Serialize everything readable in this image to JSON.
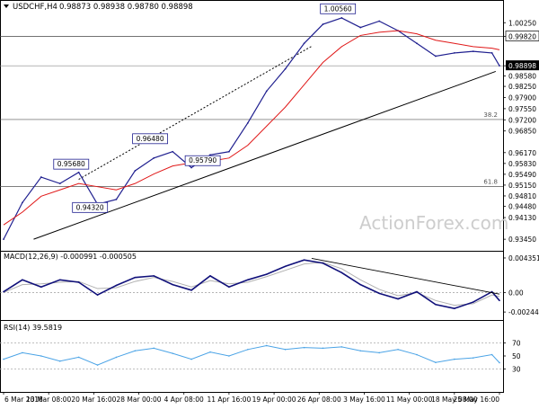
{
  "header": {
    "symbol": "USDCHF,H4",
    "ohlc": "0.98873 0.98938 0.98780 0.98898"
  },
  "watermark": "ActionForex.com",
  "colors": {
    "price": "#1f1f8f",
    "ma": "#e01818",
    "macd": "#10107a",
    "signal": "#b0b0b0",
    "rsi": "#4aa3e6",
    "trend": "#000000",
    "watermark": "#cdcdcd",
    "current_label_bg": "#000000",
    "annotation_border": "#1f1f8f"
  },
  "chart_data": [
    {
      "type": "line",
      "panel": "price",
      "ylim": [
        0.932,
        1.0085
      ],
      "y_ticks": [
        "1.00250",
        "0.99820",
        "0.98898",
        "0.98580",
        "0.98250",
        "0.97900",
        "0.97550",
        "0.97200",
        "0.96850",
        "0.96170",
        "0.95830",
        "0.95490",
        "0.95150",
        "0.94810",
        "0.94480",
        "0.94130",
        "0.93450"
      ],
      "y_tick_values": [
        1.0025,
        0.9982,
        0.98898,
        0.9858,
        0.9825,
        0.979,
        0.9755,
        0.972,
        0.9685,
        0.9617,
        0.9583,
        0.9549,
        0.9515,
        0.9481,
        0.9448,
        0.9413,
        0.9345
      ],
      "current_price": 0.98898,
      "resistance_level": 0.9982,
      "fib_levels": [
        {
          "label": "38.2",
          "value": 0.9721
        },
        {
          "label": "61.8",
          "value": 0.9511
        }
      ],
      "annotations": [
        {
          "text": "1.00560",
          "x": 89,
          "y": 1.0056
        },
        {
          "text": "0.95680",
          "x": 18,
          "y": 0.9568
        },
        {
          "text": "0.96480",
          "x": 39,
          "y": 0.9648
        },
        {
          "text": "0.94320",
          "x": 23,
          "y": 0.9432
        },
        {
          "text": "0.95790",
          "x": 53,
          "y": 0.9579
        }
      ],
      "trendlines": [
        {
          "x": [
            8,
            131
          ],
          "y": [
            0.9345,
            0.9872
          ]
        },
        {
          "x": [
            20,
            82
          ],
          "y": [
            0.9533,
            0.9951
          ]
        }
      ],
      "x": [
        0,
        5,
        10,
        15,
        20,
        25,
        30,
        35,
        40,
        45,
        50,
        55,
        60,
        65,
        70,
        75,
        80,
        85,
        90,
        95,
        100,
        105,
        110,
        115,
        120,
        125,
        130,
        132
      ],
      "close": [
        0.9345,
        0.946,
        0.954,
        0.952,
        0.9555,
        0.9455,
        0.947,
        0.956,
        0.96,
        0.962,
        0.957,
        0.961,
        0.962,
        0.971,
        0.981,
        0.988,
        0.996,
        1.002,
        1.004,
        1.001,
        1.003,
        1.0,
        0.996,
        0.992,
        0.993,
        0.9935,
        0.993,
        0.98898
      ],
      "ma": [
        0.939,
        0.943,
        0.948,
        0.95,
        0.952,
        0.951,
        0.95,
        0.952,
        0.955,
        0.9575,
        0.9585,
        0.959,
        0.96,
        0.964,
        0.97,
        0.976,
        0.983,
        0.99,
        0.995,
        0.9985,
        0.9995,
        1.0,
        0.999,
        0.997,
        0.996,
        0.995,
        0.9945,
        0.994
      ]
    },
    {
      "type": "line",
      "panel": "macd",
      "header": "MACD(12,26,9) -0.000991 -0.000505",
      "ylim": [
        -0.003,
        0.0048
      ],
      "y_ticks": [
        "0.004351",
        "0.00",
        "-0.002448"
      ],
      "y_tick_values": [
        0.004351,
        0.0,
        -0.002448
      ],
      "trendline": {
        "x": [
          82,
          132
        ],
        "y": [
          0.0043,
          -0.0002
        ]
      },
      "x": [
        0,
        5,
        10,
        15,
        20,
        25,
        30,
        35,
        40,
        45,
        50,
        55,
        60,
        65,
        70,
        75,
        80,
        85,
        90,
        95,
        100,
        105,
        110,
        115,
        120,
        125,
        130,
        132
      ],
      "macd": [
        0.0001,
        0.0016,
        0.0007,
        0.0016,
        0.0013,
        -0.0003,
        0.0009,
        0.0019,
        0.0021,
        0.001,
        0.0003,
        0.0021,
        0.0007,
        0.0016,
        0.0023,
        0.0033,
        0.0041,
        0.0037,
        0.0025,
        0.001,
        -0.0001,
        -0.0008,
        0.0001,
        -0.0015,
        -0.002,
        -0.0012,
        0.0001,
        -0.001
      ],
      "signal": [
        0.0,
        0.001,
        0.0011,
        0.0013,
        0.0014,
        0.0005,
        0.0006,
        0.0014,
        0.0019,
        0.0014,
        0.0007,
        0.0015,
        0.0011,
        0.0013,
        0.002,
        0.0028,
        0.0036,
        0.0038,
        0.003,
        0.0016,
        0.0004,
        -0.0004,
        0.0,
        -0.001,
        -0.0016,
        -0.0014,
        -0.0003,
        -0.0005
      ]
    },
    {
      "type": "line",
      "panel": "rsi",
      "header": "RSI(14) 39.5819",
      "ylim": [
        0,
        100
      ],
      "y_ticks": [
        "70",
        "50",
        "30"
      ],
      "y_tick_values": [
        70,
        50,
        30
      ],
      "x": [
        0,
        5,
        10,
        15,
        20,
        25,
        30,
        35,
        40,
        45,
        50,
        55,
        60,
        65,
        70,
        75,
        80,
        85,
        90,
        95,
        100,
        105,
        110,
        115,
        120,
        125,
        130,
        132
      ],
      "rsi": [
        45,
        55,
        50,
        42,
        48,
        36,
        48,
        58,
        62,
        54,
        45,
        56,
        50,
        60,
        66,
        60,
        63,
        62,
        64,
        58,
        55,
        60,
        52,
        40,
        45,
        47,
        52,
        39.58
      ]
    }
  ],
  "x_axis": {
    "labels": [
      "6 Mar 2018",
      "13 Mar 08:00",
      "20 Mar 16:00",
      "28 Mar 00:00",
      "4 Apr 08:00",
      "11 Apr 16:00",
      "19 Apr 00:00",
      "26 Apr 08:00",
      "3 May 16:00",
      "11 May 00:00",
      "18 May 08:00",
      "25 May 16:00"
    ],
    "label_x": [
      0,
      12,
      24,
      36,
      48,
      60,
      72,
      84,
      96,
      108,
      120,
      132
    ]
  }
}
